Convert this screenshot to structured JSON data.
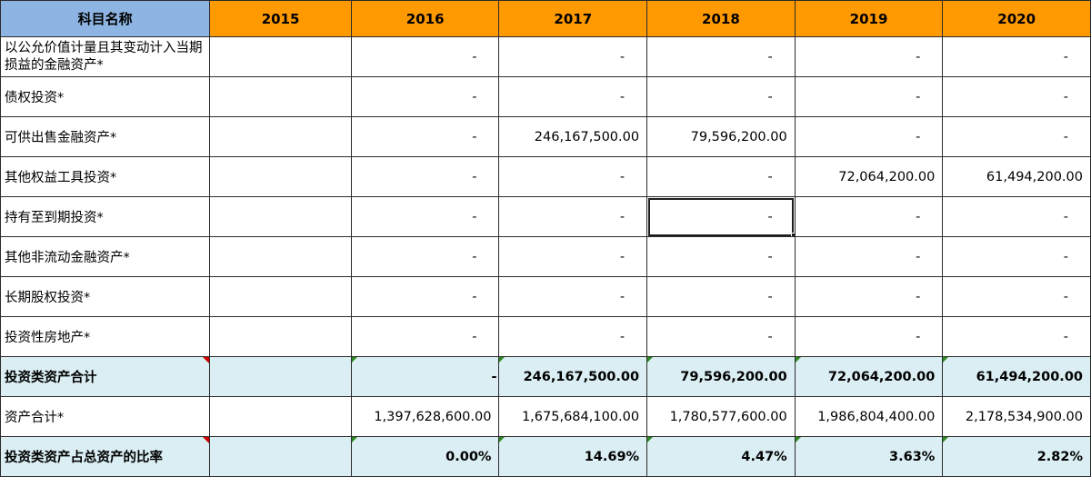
{
  "header": {
    "label": "科目名称",
    "years": [
      "2015",
      "2016",
      "2017",
      "2018",
      "2019",
      "2020"
    ]
  },
  "rows": [
    {
      "label": "以公允价值计量且其变动计入当期损益的金融资产*",
      "values": [
        "",
        "-",
        "-",
        "-",
        "-",
        "-"
      ]
    },
    {
      "label": "债权投资*",
      "values": [
        "",
        "-",
        "-",
        "-",
        "-",
        "-"
      ]
    },
    {
      "label": "可供出售金融资产*",
      "values": [
        "",
        "-",
        "246,167,500.00",
        "79,596,200.00",
        "-",
        "-"
      ]
    },
    {
      "label": "其他权益工具投资*",
      "values": [
        "",
        "-",
        "-",
        "-",
        "72,064,200.00",
        "61,494,200.00"
      ]
    },
    {
      "label": "持有至到期投资*",
      "values": [
        "",
        "-",
        "-",
        "-",
        "-",
        "-"
      ]
    },
    {
      "label": "其他非流动金融资产*",
      "values": [
        "",
        "-",
        "-",
        "-",
        "-",
        "-"
      ]
    },
    {
      "label": "长期股权投资*",
      "values": [
        "",
        "-",
        "-",
        "-",
        "-",
        "-"
      ]
    },
    {
      "label": "投资性房地产*",
      "values": [
        "",
        "-",
        "-",
        "-",
        "-",
        "-"
      ]
    }
  ],
  "subtotal": {
    "label": "投资类资产合计",
    "values": [
      "",
      "-",
      "246,167,500.00",
      "79,596,200.00",
      "72,064,200.00",
      "61,494,200.00"
    ]
  },
  "total_assets": {
    "label": "资产合计*",
    "values": [
      "",
      "1,397,628,600.00",
      "1,675,684,100.00",
      "1,780,577,600.00",
      "1,986,804,400.00",
      "2,178,534,900.00"
    ]
  },
  "ratio": {
    "label": "投资类资产占总资产的比率",
    "values": [
      "",
      "0.00%",
      "14.69%",
      "4.47%",
      "3.63%",
      "2.82%"
    ]
  },
  "colors": {
    "header_label_bg": "#8db4e2",
    "header_year_bg": "#ff9900",
    "summary_row_bg": "#daeef3"
  }
}
